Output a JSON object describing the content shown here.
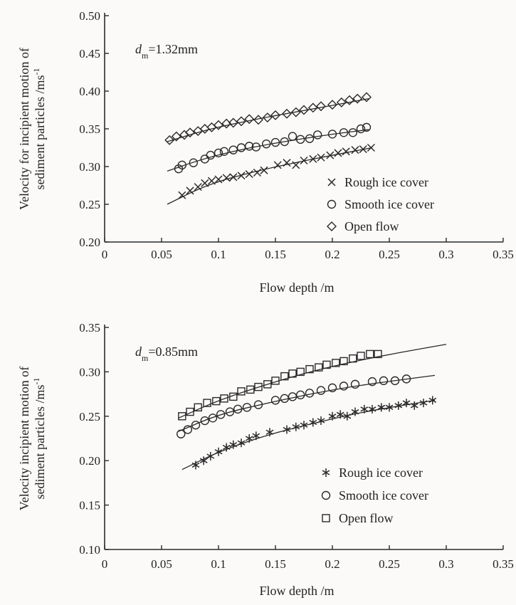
{
  "chart_data": [
    {
      "type": "scatter",
      "annotation": {
        "var": "d",
        "sub": "m",
        "value": "=1.32mm"
      },
      "xlabel": "Flow depth /m",
      "ylabel": [
        "Velocity for incipient motion of",
        "sediment particles /ms"
      ],
      "ylabel_sup": "-1",
      "xlim": [
        0,
        0.35
      ],
      "ylim": [
        0.2,
        0.5
      ],
      "xticks": [
        0,
        0.05,
        0.1,
        0.15,
        0.2,
        0.25,
        0.3,
        0.35
      ],
      "xtick_labels": [
        "0",
        "0.05",
        "0.1",
        "0.15",
        "0.2",
        "0.25",
        "0.3",
        "0.35"
      ],
      "yticks": [
        0.2,
        0.25,
        0.3,
        0.35,
        0.4,
        0.45,
        0.5
      ],
      "ytick_labels": [
        "0.20",
        "0.25",
        "0.30",
        "0.35",
        "0.40",
        "0.45",
        "0.50"
      ],
      "legend_position": "bottom-right",
      "series": [
        {
          "name": "Rough ice cover",
          "marker": "x",
          "x": [
            0.068,
            0.075,
            0.082,
            0.088,
            0.094,
            0.1,
            0.107,
            0.113,
            0.12,
            0.127,
            0.134,
            0.14,
            0.152,
            0.16,
            0.168,
            0.175,
            0.183,
            0.19,
            0.198,
            0.205,
            0.212,
            0.22,
            0.227,
            0.234
          ],
          "y": [
            0.262,
            0.268,
            0.273,
            0.278,
            0.281,
            0.283,
            0.285,
            0.286,
            0.288,
            0.29,
            0.292,
            0.295,
            0.302,
            0.305,
            0.302,
            0.308,
            0.31,
            0.312,
            0.315,
            0.318,
            0.32,
            0.322,
            0.323,
            0.325
          ],
          "fit": [
            [
              0.055,
              0.25
            ],
            [
              0.09,
              0.276
            ],
            [
              0.13,
              0.293
            ],
            [
              0.17,
              0.306
            ],
            [
              0.2,
              0.315
            ],
            [
              0.235,
              0.325
            ]
          ]
        },
        {
          "name": "Smooth ice cover",
          "marker": "circle",
          "x": [
            0.065,
            0.068,
            0.078,
            0.088,
            0.093,
            0.1,
            0.105,
            0.113,
            0.12,
            0.127,
            0.133,
            0.142,
            0.15,
            0.158,
            0.165,
            0.172,
            0.18,
            0.187,
            0.2,
            0.21,
            0.218,
            0.225,
            0.23
          ],
          "y": [
            0.297,
            0.302,
            0.305,
            0.31,
            0.315,
            0.318,
            0.32,
            0.322,
            0.325,
            0.327,
            0.326,
            0.33,
            0.332,
            0.333,
            0.34,
            0.336,
            0.337,
            0.342,
            0.343,
            0.345,
            0.345,
            0.35,
            0.352
          ],
          "fit": [
            [
              0.055,
              0.294
            ],
            [
              0.09,
              0.312
            ],
            [
              0.13,
              0.326
            ],
            [
              0.17,
              0.336
            ],
            [
              0.2,
              0.343
            ],
            [
              0.232,
              0.349
            ]
          ]
        },
        {
          "name": "Open flow",
          "marker": "diamond",
          "x": [
            0.057,
            0.063,
            0.07,
            0.075,
            0.082,
            0.088,
            0.094,
            0.1,
            0.107,
            0.113,
            0.12,
            0.127,
            0.135,
            0.143,
            0.15,
            0.16,
            0.168,
            0.175,
            0.183,
            0.19,
            0.2,
            0.208,
            0.215,
            0.222,
            0.23
          ],
          "y": [
            0.335,
            0.34,
            0.342,
            0.345,
            0.347,
            0.35,
            0.352,
            0.355,
            0.357,
            0.358,
            0.36,
            0.363,
            0.362,
            0.365,
            0.368,
            0.37,
            0.372,
            0.375,
            0.378,
            0.38,
            0.382,
            0.385,
            0.388,
            0.39,
            0.392
          ],
          "fit": [
            [
              0.055,
              0.333
            ],
            [
              0.09,
              0.349
            ],
            [
              0.13,
              0.362
            ],
            [
              0.17,
              0.373
            ],
            [
              0.2,
              0.381
            ],
            [
              0.232,
              0.39
            ]
          ]
        }
      ]
    },
    {
      "type": "scatter",
      "annotation": {
        "var": "d",
        "sub": "m",
        "value": "=0.85mm"
      },
      "xlabel": "Flow depth /m",
      "ylabel": [
        "Velocity incipient motion of",
        "sediment particles /ms"
      ],
      "ylabel_sup": "-1",
      "xlim": [
        0,
        0.35
      ],
      "ylim": [
        0.1,
        0.35
      ],
      "xticks": [
        0,
        0.05,
        0.1,
        0.15,
        0.2,
        0.25,
        0.3,
        0.35
      ],
      "xtick_labels": [
        "0",
        "0.05",
        "0.1",
        "0.15",
        "0.2",
        "0.25",
        "0.3",
        "0.35"
      ],
      "yticks": [
        0.1,
        0.15,
        0.2,
        0.25,
        0.3,
        0.35
      ],
      "ytick_labels": [
        "0.10",
        "0.15",
        "0.20",
        "0.25",
        "0.30",
        "0.35"
      ],
      "legend_position": "bottom-right",
      "series": [
        {
          "name": "Rough ice cover",
          "marker": "star",
          "x": [
            0.08,
            0.087,
            0.093,
            0.1,
            0.107,
            0.113,
            0.12,
            0.127,
            0.133,
            0.145,
            0.16,
            0.168,
            0.175,
            0.183,
            0.19,
            0.2,
            0.207,
            0.213,
            0.22,
            0.228,
            0.235,
            0.243,
            0.25,
            0.258,
            0.265,
            0.272,
            0.28,
            0.288
          ],
          "y": [
            0.195,
            0.2,
            0.205,
            0.21,
            0.215,
            0.218,
            0.22,
            0.225,
            0.228,
            0.232,
            0.235,
            0.238,
            0.24,
            0.243,
            0.245,
            0.25,
            0.252,
            0.25,
            0.255,
            0.258,
            0.258,
            0.26,
            0.26,
            0.262,
            0.265,
            0.262,
            0.265,
            0.268
          ],
          "fit": [
            [
              0.068,
              0.19
            ],
            [
              0.1,
              0.21
            ],
            [
              0.14,
              0.228
            ],
            [
              0.18,
              0.241
            ],
            [
              0.22,
              0.253
            ],
            [
              0.26,
              0.262
            ],
            [
              0.29,
              0.268
            ]
          ]
        },
        {
          "name": "Smooth ice cover",
          "marker": "circle",
          "x": [
            0.067,
            0.073,
            0.08,
            0.088,
            0.095,
            0.102,
            0.11,
            0.117,
            0.125,
            0.135,
            0.15,
            0.158,
            0.165,
            0.172,
            0.18,
            0.19,
            0.2,
            0.21,
            0.22,
            0.235,
            0.245,
            0.255,
            0.265
          ],
          "y": [
            0.23,
            0.235,
            0.24,
            0.245,
            0.248,
            0.252,
            0.255,
            0.258,
            0.26,
            0.263,
            0.268,
            0.27,
            0.272,
            0.274,
            0.276,
            0.279,
            0.282,
            0.284,
            0.286,
            0.289,
            0.29,
            0.29,
            0.292
          ],
          "fit": [
            [
              0.065,
              0.233
            ],
            [
              0.1,
              0.252
            ],
            [
              0.14,
              0.264
            ],
            [
              0.18,
              0.275
            ],
            [
              0.22,
              0.284
            ],
            [
              0.26,
              0.291
            ],
            [
              0.29,
              0.296
            ]
          ]
        },
        {
          "name": "Open flow",
          "marker": "square",
          "x": [
            0.068,
            0.075,
            0.082,
            0.09,
            0.098,
            0.105,
            0.113,
            0.12,
            0.128,
            0.135,
            0.143,
            0.15,
            0.158,
            0.165,
            0.172,
            0.18,
            0.188,
            0.195,
            0.203,
            0.21,
            0.218,
            0.225,
            0.233,
            0.24
          ],
          "y": [
            0.25,
            0.255,
            0.26,
            0.265,
            0.267,
            0.27,
            0.272,
            0.278,
            0.28,
            0.283,
            0.286,
            0.29,
            0.295,
            0.298,
            0.3,
            0.303,
            0.305,
            0.308,
            0.31,
            0.312,
            0.315,
            0.318,
            0.32,
            0.32
          ],
          "fit": [
            [
              0.065,
              0.248
            ],
            [
              0.1,
              0.268
            ],
            [
              0.14,
              0.285
            ],
            [
              0.18,
              0.3
            ],
            [
              0.22,
              0.312
            ],
            [
              0.26,
              0.322
            ],
            [
              0.3,
              0.331
            ]
          ]
        }
      ]
    }
  ]
}
